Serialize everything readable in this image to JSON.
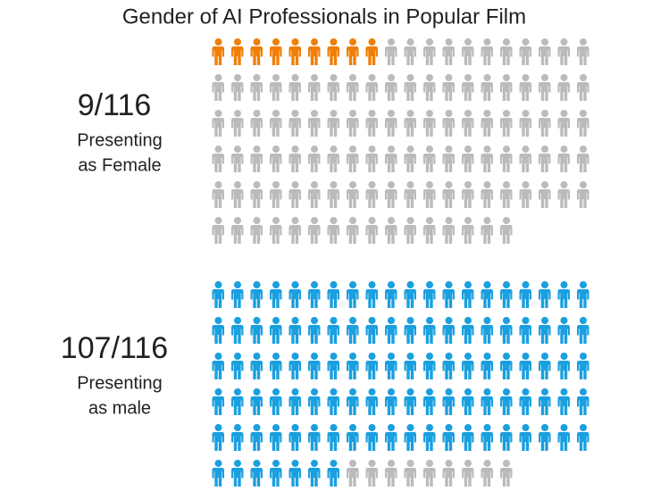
{
  "chart_data": {
    "type": "pictogram",
    "title": "Gender of AI Professionals in Popular Film",
    "rest_color": "#bbbbbb",
    "groups": [
      {
        "label": "9/116",
        "caption": [
          "Presenting",
          "as Female"
        ],
        "value": 9,
        "total": 116,
        "color": "#f07f09"
      },
      {
        "label": "107/116",
        "caption": [
          "Presenting",
          "as male"
        ],
        "value": 107,
        "total": 116,
        "color": "#1a9fdf"
      }
    ]
  }
}
